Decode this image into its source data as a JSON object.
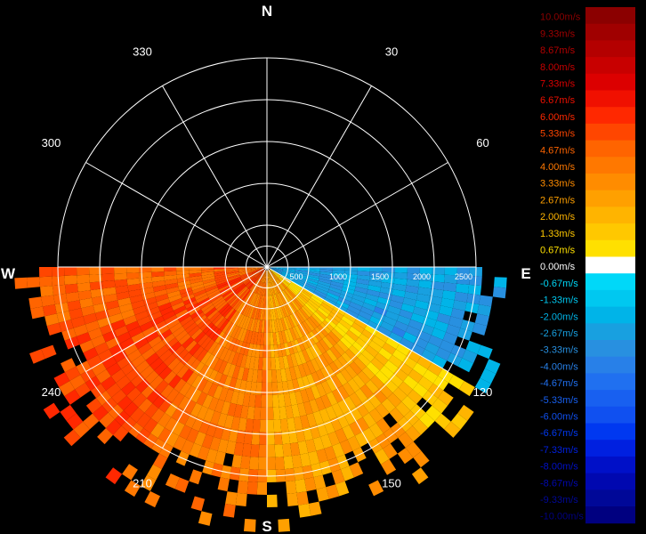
{
  "chart_data": {
    "type": "heatmap",
    "subtype": "polar-radar-radial-velocity",
    "cardinal_labels": {
      "north": "N",
      "east": "E",
      "south": "S",
      "west": "W"
    },
    "azimuth_labels": [
      "30",
      "60",
      "120",
      "150",
      "210",
      "240",
      "300",
      "330"
    ],
    "azimuth_values": [
      30,
      60,
      120,
      150,
      210,
      240,
      300,
      330
    ],
    "range_labels": [
      "500",
      "1000",
      "1500",
      "2000",
      "2500"
    ],
    "range_values": [
      500,
      1000,
      1500,
      2000,
      2500
    ],
    "range_max": 2500,
    "grid": true,
    "data_sector": {
      "azimuth_start": 90,
      "azimuth_end": 270,
      "note_west_edge_from": 270
    },
    "velocity_pattern": [
      {
        "azimuth_from": 90,
        "azimuth_to": 118,
        "velocity": -2.67
      },
      {
        "azimuth_from": 118,
        "azimuth_to": 135,
        "velocity": 1.33
      },
      {
        "azimuth_from": 135,
        "azimuth_to": 180,
        "velocity": 2.67
      },
      {
        "azimuth_from": 180,
        "azimuth_to": 215,
        "velocity": 4.0
      },
      {
        "azimuth_from": 215,
        "azimuth_to": 250,
        "velocity": 5.33
      },
      {
        "azimuth_from": 250,
        "azimuth_to": 270,
        "velocity": 4.67
      }
    ],
    "legend": {
      "unit": "m/s",
      "labels": [
        "10.00m/s",
        "9.33m/s",
        "8.67m/s",
        "8.00m/s",
        "7.33m/s",
        "6.67m/s",
        "6.00m/s",
        "5.33m/s",
        "4.67m/s",
        "4.00m/s",
        "3.33m/s",
        "2.67m/s",
        "2.00m/s",
        "1.33m/s",
        "0.67m/s",
        "0.00m/s",
        "-0.67m/s",
        "-1.33m/s",
        "-2.00m/s",
        "-2.67m/s",
        "-3.33m/s",
        "-4.00m/s",
        "-4.67m/s",
        "-5.33m/s",
        "-6.00m/s",
        "-6.67m/s",
        "-7.33m/s",
        "-8.00m/s",
        "-8.67m/s",
        "-9.33m/s",
        "-10.00m/s"
      ],
      "values": [
        10.0,
        9.33,
        8.67,
        8.0,
        7.33,
        6.67,
        6.0,
        5.33,
        4.67,
        4.0,
        3.33,
        2.67,
        2.0,
        1.33,
        0.67,
        0.0,
        -0.67,
        -1.33,
        -2.0,
        -2.67,
        -3.33,
        -4.0,
        -4.67,
        -5.33,
        -6.0,
        -6.67,
        -7.33,
        -8.0,
        -8.67,
        -9.33,
        -10.0
      ],
      "colors": [
        "#8b0000",
        "#a00000",
        "#b40000",
        "#c80000",
        "#dc0000",
        "#f01000",
        "#ff2800",
        "#ff4600",
        "#ff6400",
        "#ff7800",
        "#ff8c00",
        "#ffa000",
        "#ffb400",
        "#ffc800",
        "#ffe000",
        "#ffffff",
        "#00d8f8",
        "#00c8f0",
        "#00b4e8",
        "#18a0e0",
        "#2890e0",
        "#2880e8",
        "#2070f0",
        "#1860f0",
        "#1050f0",
        "#0038f0",
        "#0020e0",
        "#0010c8",
        "#0008b0",
        "#000898",
        "#000080"
      ],
      "label_colors": [
        "#8b0000",
        "#a00000",
        "#b40000",
        "#c80000",
        "#dc0000",
        "#f01000",
        "#ff2800",
        "#ff4600",
        "#ff6400",
        "#ff7800",
        "#ff8c00",
        "#ffa000",
        "#ffb400",
        "#ffc800",
        "#ffe000",
        "#ffffff",
        "#00d8f8",
        "#00c8f0",
        "#00b4e8",
        "#18a0e0",
        "#2890e0",
        "#2880e8",
        "#2070f0",
        "#1860f0",
        "#1050f0",
        "#0038f0",
        "#0020e0",
        "#0010c8",
        "#0008b0",
        "#000898",
        "#000080"
      ]
    }
  }
}
